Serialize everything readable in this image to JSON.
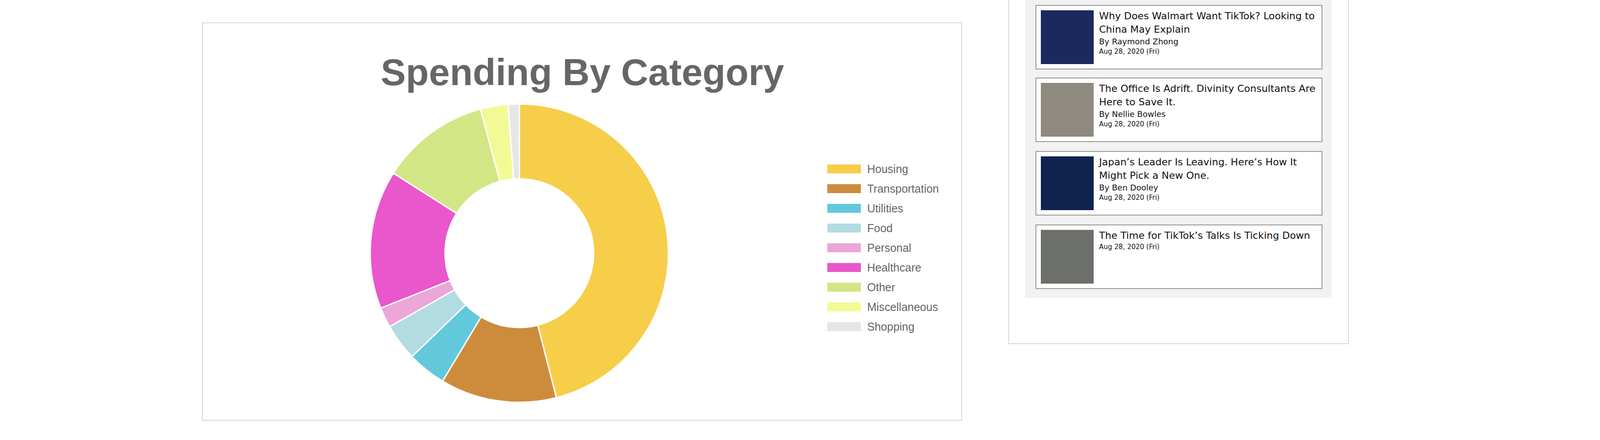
{
  "chart_data": {
    "type": "donut",
    "title": "Spending By Category",
    "categories": [
      "Housing",
      "Transportation",
      "Utilities",
      "Food",
      "Personal",
      "Healthcare",
      "Other",
      "Miscellaneous",
      "Shopping"
    ],
    "values": [
      46,
      12.6,
      4.2,
      4,
      2.2,
      15,
      11.8,
      3,
      1.2
    ],
    "colors": [
      "#f7ce4a",
      "#cd8c3c",
      "#62c8dc",
      "#b3dce2",
      "#eca6d8",
      "#ea56cb",
      "#d3e685",
      "#f3fa95",
      "#e6e6e6"
    ],
    "legend": "right"
  },
  "sidebar": {
    "articles": [
      {
        "title": "Why Does Walmart Want TikTok? Looking to China May Explain",
        "author": "By Raymond Zhong",
        "date": "Aug 28, 2020 (Fri)"
      },
      {
        "title": "The Office Is Adrift. Divinity Consultants Are Here to Save It.",
        "author": "By Nellie Bowles",
        "date": "Aug 28, 2020 (Fri)"
      },
      {
        "title": "Japan’s Leader Is Leaving. Here’s How It Might Pick a New One.",
        "author": "By Ben Dooley",
        "date": "Aug 28, 2020 (Fri)"
      },
      {
        "title": "The Time for TikTok’s Talks Is Ticking Down",
        "date": "Aug 28, 2020 (Fri)"
      }
    ]
  }
}
